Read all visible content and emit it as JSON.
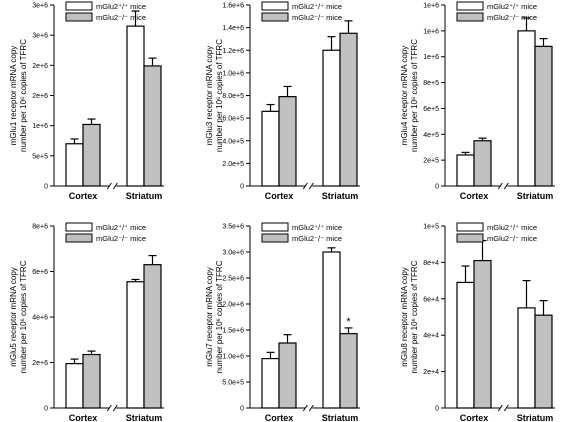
{
  "chart_data": [
    {
      "type": "bar",
      "ylabel_lines": [
        "mGlu1 receptor mRNA copy",
        "number per 10⁶ copies of TFRC"
      ],
      "categories": [
        "Cortex",
        "Striatum"
      ],
      "legend": [
        "mGlu2⁺/⁺ mice",
        "mGlu2⁻/⁻ mice"
      ],
      "ylim": [
        0,
        3000000
      ],
      "yticks": [
        "0",
        "5e+5",
        "1e+6",
        "2e+6",
        "2e+6",
        "3e+6",
        "3e+6"
      ],
      "series": [
        {
          "name": "mGlu2⁺/⁺ mice",
          "color": "#ffffff",
          "values": [
            700000,
            2650000
          ],
          "errors": [
            80000,
            250000
          ]
        },
        {
          "name": "mGlu2⁻/⁻ mice",
          "color": "#c0c0c0",
          "values": [
            1020000,
            1990000
          ],
          "errors": [
            90000,
            130000
          ]
        }
      ],
      "annotations": []
    },
    {
      "type": "bar",
      "ylabel_lines": [
        "mGlu3 receptor mRNA copy",
        "number per 10⁶ copies of TFRC"
      ],
      "categories": [
        "Cortex",
        "Striatum"
      ],
      "legend": [
        "mGlu2⁺/⁺ mice",
        "mGlu2⁻/⁻ mice"
      ],
      "ylim": [
        0,
        1600000
      ],
      "yticks": [
        "0",
        "2.0e+5",
        "4.0e+5",
        "6.0e+5",
        "8.0e+5",
        "1.0e+6",
        "1.2e+6",
        "1.4e+6",
        "1.6e+6"
      ],
      "series": [
        {
          "name": "mGlu2⁺/⁺ mice",
          "color": "#ffffff",
          "values": [
            660000,
            1200000
          ],
          "errors": [
            60000,
            120000
          ]
        },
        {
          "name": "mGlu2⁻/⁻ mice",
          "color": "#c0c0c0",
          "values": [
            790000,
            1350000
          ],
          "errors": [
            90000,
            110000
          ]
        }
      ],
      "annotations": []
    },
    {
      "type": "bar",
      "ylabel_lines": [
        "mGlu4 receptor mRNA copy",
        "number per 10⁶ copies of TFRC"
      ],
      "categories": [
        "Cortex",
        "Striatum"
      ],
      "legend": [
        "mGlu2⁺/⁺ mice",
        "mGlu2⁻/⁻ mice"
      ],
      "ylim": [
        0,
        1400000
      ],
      "yticks": [
        "0",
        "2e+5",
        "4e+5",
        "6e+5",
        "8e+5",
        "1e+6",
        "1e+6",
        "1e+6"
      ],
      "series": [
        {
          "name": "mGlu2⁺/⁺ mice",
          "color": "#ffffff",
          "values": [
            240000,
            1200000
          ],
          "errors": [
            20000,
            100000
          ]
        },
        {
          "name": "mGlu2⁻/⁻ mice",
          "color": "#c0c0c0",
          "values": [
            350000,
            1080000
          ],
          "errors": [
            20000,
            60000
          ]
        }
      ],
      "annotations": []
    },
    {
      "type": "bar",
      "ylabel_lines": [
        "mGlu5 receptor mRNA copy",
        "number per 10⁶ copies of TFRC"
      ],
      "categories": [
        "Cortex",
        "Striatum"
      ],
      "legend": [
        "mGlu2⁺/⁺ mice",
        "mGlu2⁻/⁻ mice"
      ],
      "ylim": [
        0,
        8000000
      ],
      "yticks": [
        "0",
        "2e+6",
        "4e+6",
        "6e+6",
        "8e+6"
      ],
      "series": [
        {
          "name": "mGlu2⁺/⁺ mice",
          "color": "#ffffff",
          "values": [
            1950000,
            5550000
          ],
          "errors": [
            200000,
            100000
          ]
        },
        {
          "name": "mGlu2⁻/⁻ mice",
          "color": "#c0c0c0",
          "values": [
            2350000,
            6300000
          ],
          "errors": [
            150000,
            400000
          ]
        }
      ],
      "annotations": []
    },
    {
      "type": "bar",
      "ylabel_lines": [
        "mGlu7 receptor mRNA copy",
        "number per 10⁶ copies of TFRC"
      ],
      "categories": [
        "Cortex",
        "Striatum"
      ],
      "legend": [
        "mGlu2⁺/⁺ mice",
        "mGlu2⁻/⁻ mice"
      ],
      "ylim": [
        0,
        3500000
      ],
      "yticks": [
        "0",
        "5.0e+5",
        "1.0e+6",
        "1.5e+6",
        "2.0e+6",
        "2.5e+6",
        "3.0e+6",
        "3.5e+6"
      ],
      "series": [
        {
          "name": "mGlu2⁺/⁺ mice",
          "color": "#ffffff",
          "values": [
            950000,
            3000000
          ],
          "errors": [
            120000,
            80000
          ]
        },
        {
          "name": "mGlu2⁻/⁻ mice",
          "color": "#c0c0c0",
          "values": [
            1250000,
            1430000
          ],
          "errors": [
            160000,
            110000
          ]
        }
      ],
      "annotations": [
        {
          "text": "*",
          "category": "Striatum",
          "series": 1
        }
      ]
    },
    {
      "type": "bar",
      "ylabel_lines": [
        "mGlu8 receptor mRNA copy",
        "number per 10⁶ copies of TFRC"
      ],
      "categories": [
        "Cortex",
        "Striatum"
      ],
      "legend": [
        "mGlu2⁺/⁺ mice",
        "mGlu2⁻/⁻ mice"
      ],
      "ylim": [
        0,
        100000
      ],
      "yticks": [
        "0",
        "2e+4",
        "4e+4",
        "6e+4",
        "8e+4",
        "1e+5"
      ],
      "series": [
        {
          "name": "mGlu2⁺/⁺ mice",
          "color": "#ffffff",
          "values": [
            69000,
            55000
          ],
          "errors": [
            9000,
            15000
          ]
        },
        {
          "name": "mGlu2⁻/⁻ mice",
          "color": "#c0c0c0",
          "values": [
            81000,
            51000
          ],
          "errors": [
            11000,
            8000
          ]
        }
      ],
      "annotations": []
    }
  ]
}
